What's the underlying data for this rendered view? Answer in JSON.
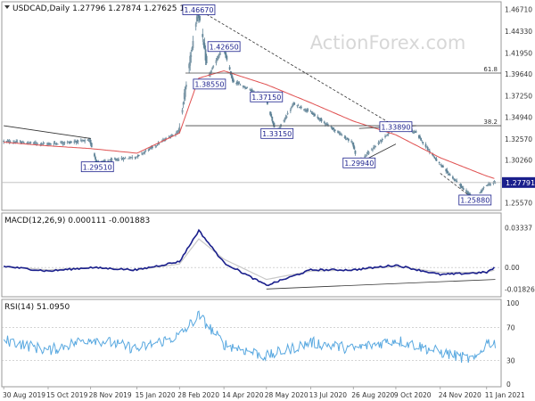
{
  "header": {
    "symbol_line": "USDCAD,Daily  1.27796 1.27874 1.27625 1.27791",
    "watermark": "ActionForex.com"
  },
  "colors": {
    "background": "#ffffff",
    "frame": "#9a9a9a",
    "candle": "#5e8296",
    "candle_body": "#7f99a8",
    "ma": "#e05050",
    "macd": "#1a1f8c",
    "signal": "#c8c8c8",
    "rsi": "#58a8e0",
    "annotation_border": "#1a1f8c",
    "annotation_text": "#1a1f8c",
    "trendline": "#333333",
    "fib": "#444444",
    "hline": "#bbbbbb",
    "current_tag": "#1a1f8c",
    "axis_text": "#333333"
  },
  "chart_data": [
    {
      "type": "candlestick",
      "title": "USDCAD,Daily  1.27796 1.27874 1.27625 1.27791",
      "ylim": [
        1.2495,
        1.4735
      ],
      "y_ticks": [
        "1.46710",
        "1.44330",
        "1.41950",
        "1.39640",
        "1.37250",
        "1.34940",
        "1.32570",
        "1.30260",
        "1.27791",
        "1.25570"
      ],
      "x_ticks": [
        "30 Aug 2019",
        "15 Oct 2019",
        "28 Nov 2019",
        "15 Jan 2020",
        "28 Feb 2020",
        "14 Apr 2020",
        "28 May 2020",
        "13 Jul 2020",
        "26 Aug 2020",
        "9 Oct 2020",
        "24 Nov 2020",
        "11 Jan 2021"
      ],
      "current_price": "1.27791",
      "series": [
        {
          "kind": "price",
          "x": [
            "30 Aug 2019",
            "15 Oct 2019",
            "28 Nov 2019",
            "5 Dec 2019",
            "15 Jan 2020",
            "28 Feb 2020",
            "19 Mar 2020",
            "30 Mar 2020",
            "14 Apr 2020",
            "24 Apr 2020",
            "28 May 2020",
            "8 Jun 2020",
            "26 Jun 2020",
            "13 Jul 2020",
            "26 Aug 2020",
            "1 Sep 2020",
            "9 Oct 2020",
            "30 Oct 2020",
            "24 Nov 2020",
            "30 Dec 2020",
            "11 Jan 2021",
            "20 Jan 2021"
          ],
          "y": [
            1.323,
            1.32,
            1.324,
            1.3,
            1.306,
            1.334,
            1.4667,
            1.394,
            1.4265,
            1.389,
            1.371,
            1.3315,
            1.364,
            1.355,
            1.321,
            1.2994,
            1.3389,
            1.333,
            1.298,
            1.2588,
            1.275,
            1.2779
          ]
        },
        {
          "kind": "ma",
          "x": [
            "30 Aug 2019",
            "15 Oct 2019",
            "28 Nov 2019",
            "15 Jan 2020",
            "28 Feb 2020",
            "19 Mar 2020",
            "14 Apr 2020",
            "28 May 2020",
            "13 Jul 2020",
            "26 Aug 2020",
            "9 Oct 2020",
            "24 Nov 2020",
            "11 Jan 2021",
            "20 Jan 2021"
          ],
          "y": [
            1.322,
            1.318,
            1.315,
            1.31,
            1.332,
            1.392,
            1.4,
            1.385,
            1.365,
            1.345,
            1.33,
            1.305,
            1.285,
            1.282
          ]
        }
      ],
      "annotations": [
        {
          "label": "1.46670",
          "x": "19 Mar 2020",
          "y": 1.4667
        },
        {
          "label": "1.42650",
          "x": "14 Apr 2020",
          "y": 1.4265
        },
        {
          "label": "1.38550",
          "x": "30 Mar 2020",
          "y": 1.3855
        },
        {
          "label": "1.37150",
          "x": "28 May 2020",
          "y": 1.3715
        },
        {
          "label": "1.33150",
          "x": "8 Jun 2020",
          "y": 1.3315
        },
        {
          "label": "1.33890",
          "x": "9 Oct 2020",
          "y": 1.3389
        },
        {
          "label": "1.29940",
          "x": "1 Sep 2020",
          "y": 1.2994
        },
        {
          "label": "1.29510",
          "x": "5 Dec 2019",
          "y": 1.2951
        },
        {
          "label": "1.25880",
          "x": "30 Dec 2020",
          "y": 1.2588
        }
      ],
      "fib_levels": [
        {
          "label": "61.8",
          "value": 1.3975
        },
        {
          "label": "38.2",
          "value": 1.34
        }
      ],
      "trendlines": [
        {
          "from": [
            "30 Aug 2019",
            1.34
          ],
          "to": [
            "28 Nov 2019",
            1.326
          ],
          "style": "solid"
        },
        {
          "from": [
            "19 Mar 2020",
            1.4667
          ],
          "to": [
            "9 Oct 2020",
            1.339
          ],
          "style": "dashed"
        },
        {
          "from": [
            "1 Sep 2020",
            1.2994
          ],
          "to": [
            "9 Oct 2020",
            1.32
          ],
          "style": "solid"
        },
        {
          "from": [
            "1 Sep 2020",
            1.337
          ],
          "to": [
            "30 Oct 2020",
            1.34
          ],
          "style": "solid"
        },
        {
          "from": [
            "24 Nov 2020",
            1.288
          ],
          "to": [
            "30 Dec 2020",
            1.2588
          ],
          "style": "dashed"
        }
      ]
    },
    {
      "type": "line",
      "title": "MACD(12,26,9) 0.000111 -0.001883",
      "ylim": [
        -0.023,
        0.036
      ],
      "y_ticks": [
        "0.03337",
        "0.00",
        "-0.018262"
      ],
      "series": [
        {
          "name": "MACD",
          "x": [
            "30 Aug 2019",
            "15 Oct 2019",
            "28 Nov 2019",
            "15 Jan 2020",
            "28 Feb 2020",
            "19 Mar 2020",
            "14 Apr 2020",
            "28 May 2020",
            "13 Jul 2020",
            "26 Aug 2020",
            "9 Oct 2020",
            "24 Nov 2020",
            "11 Jan 2021",
            "20 Jan 2021"
          ],
          "y": [
            0.001,
            -0.003,
            0.0,
            -0.002,
            0.005,
            0.031,
            0.004,
            -0.015,
            -0.002,
            -0.002,
            0.002,
            -0.006,
            -0.004,
            0.0001
          ]
        },
        {
          "name": "Signal",
          "x": [
            "30 Aug 2019",
            "15 Oct 2019",
            "28 Nov 2019",
            "15 Jan 2020",
            "28 Feb 2020",
            "19 Mar 2020",
            "14 Apr 2020",
            "28 May 2020",
            "13 Jul 2020",
            "26 Aug 2020",
            "9 Oct 2020",
            "24 Nov 2020",
            "11 Jan 2021",
            "20 Jan 2021"
          ],
          "y": [
            0.001,
            -0.002,
            0.0,
            -0.002,
            0.003,
            0.024,
            0.007,
            -0.01,
            -0.003,
            -0.002,
            0.001,
            -0.004,
            -0.004,
            -0.0019
          ]
        }
      ],
      "trendlines": [
        {
          "from": [
            "28 May 2020",
            -0.018
          ],
          "to": [
            "20 Jan 2021",
            -0.01
          ]
        }
      ]
    },
    {
      "type": "line",
      "title": "RSI(14) 51.0950",
      "ylim": [
        0,
        100
      ],
      "y_ticks": [
        "100",
        "70",
        "30",
        "0"
      ],
      "series": [
        {
          "name": "RSI",
          "x": [
            "30 Aug 2019",
            "15 Oct 2019",
            "28 Nov 2019",
            "15 Jan 2020",
            "28 Feb 2020",
            "19 Mar 2020",
            "14 Apr 2020",
            "28 May 2020",
            "13 Jul 2020",
            "26 Aug 2020",
            "9 Oct 2020",
            "24 Nov 2020",
            "30 Dec 2020",
            "11 Jan 2021",
            "20 Jan 2021"
          ],
          "y": [
            55,
            42,
            57,
            44,
            60,
            85,
            50,
            35,
            52,
            44,
            55,
            40,
            30,
            52,
            51.1
          ]
        }
      ]
    }
  ]
}
